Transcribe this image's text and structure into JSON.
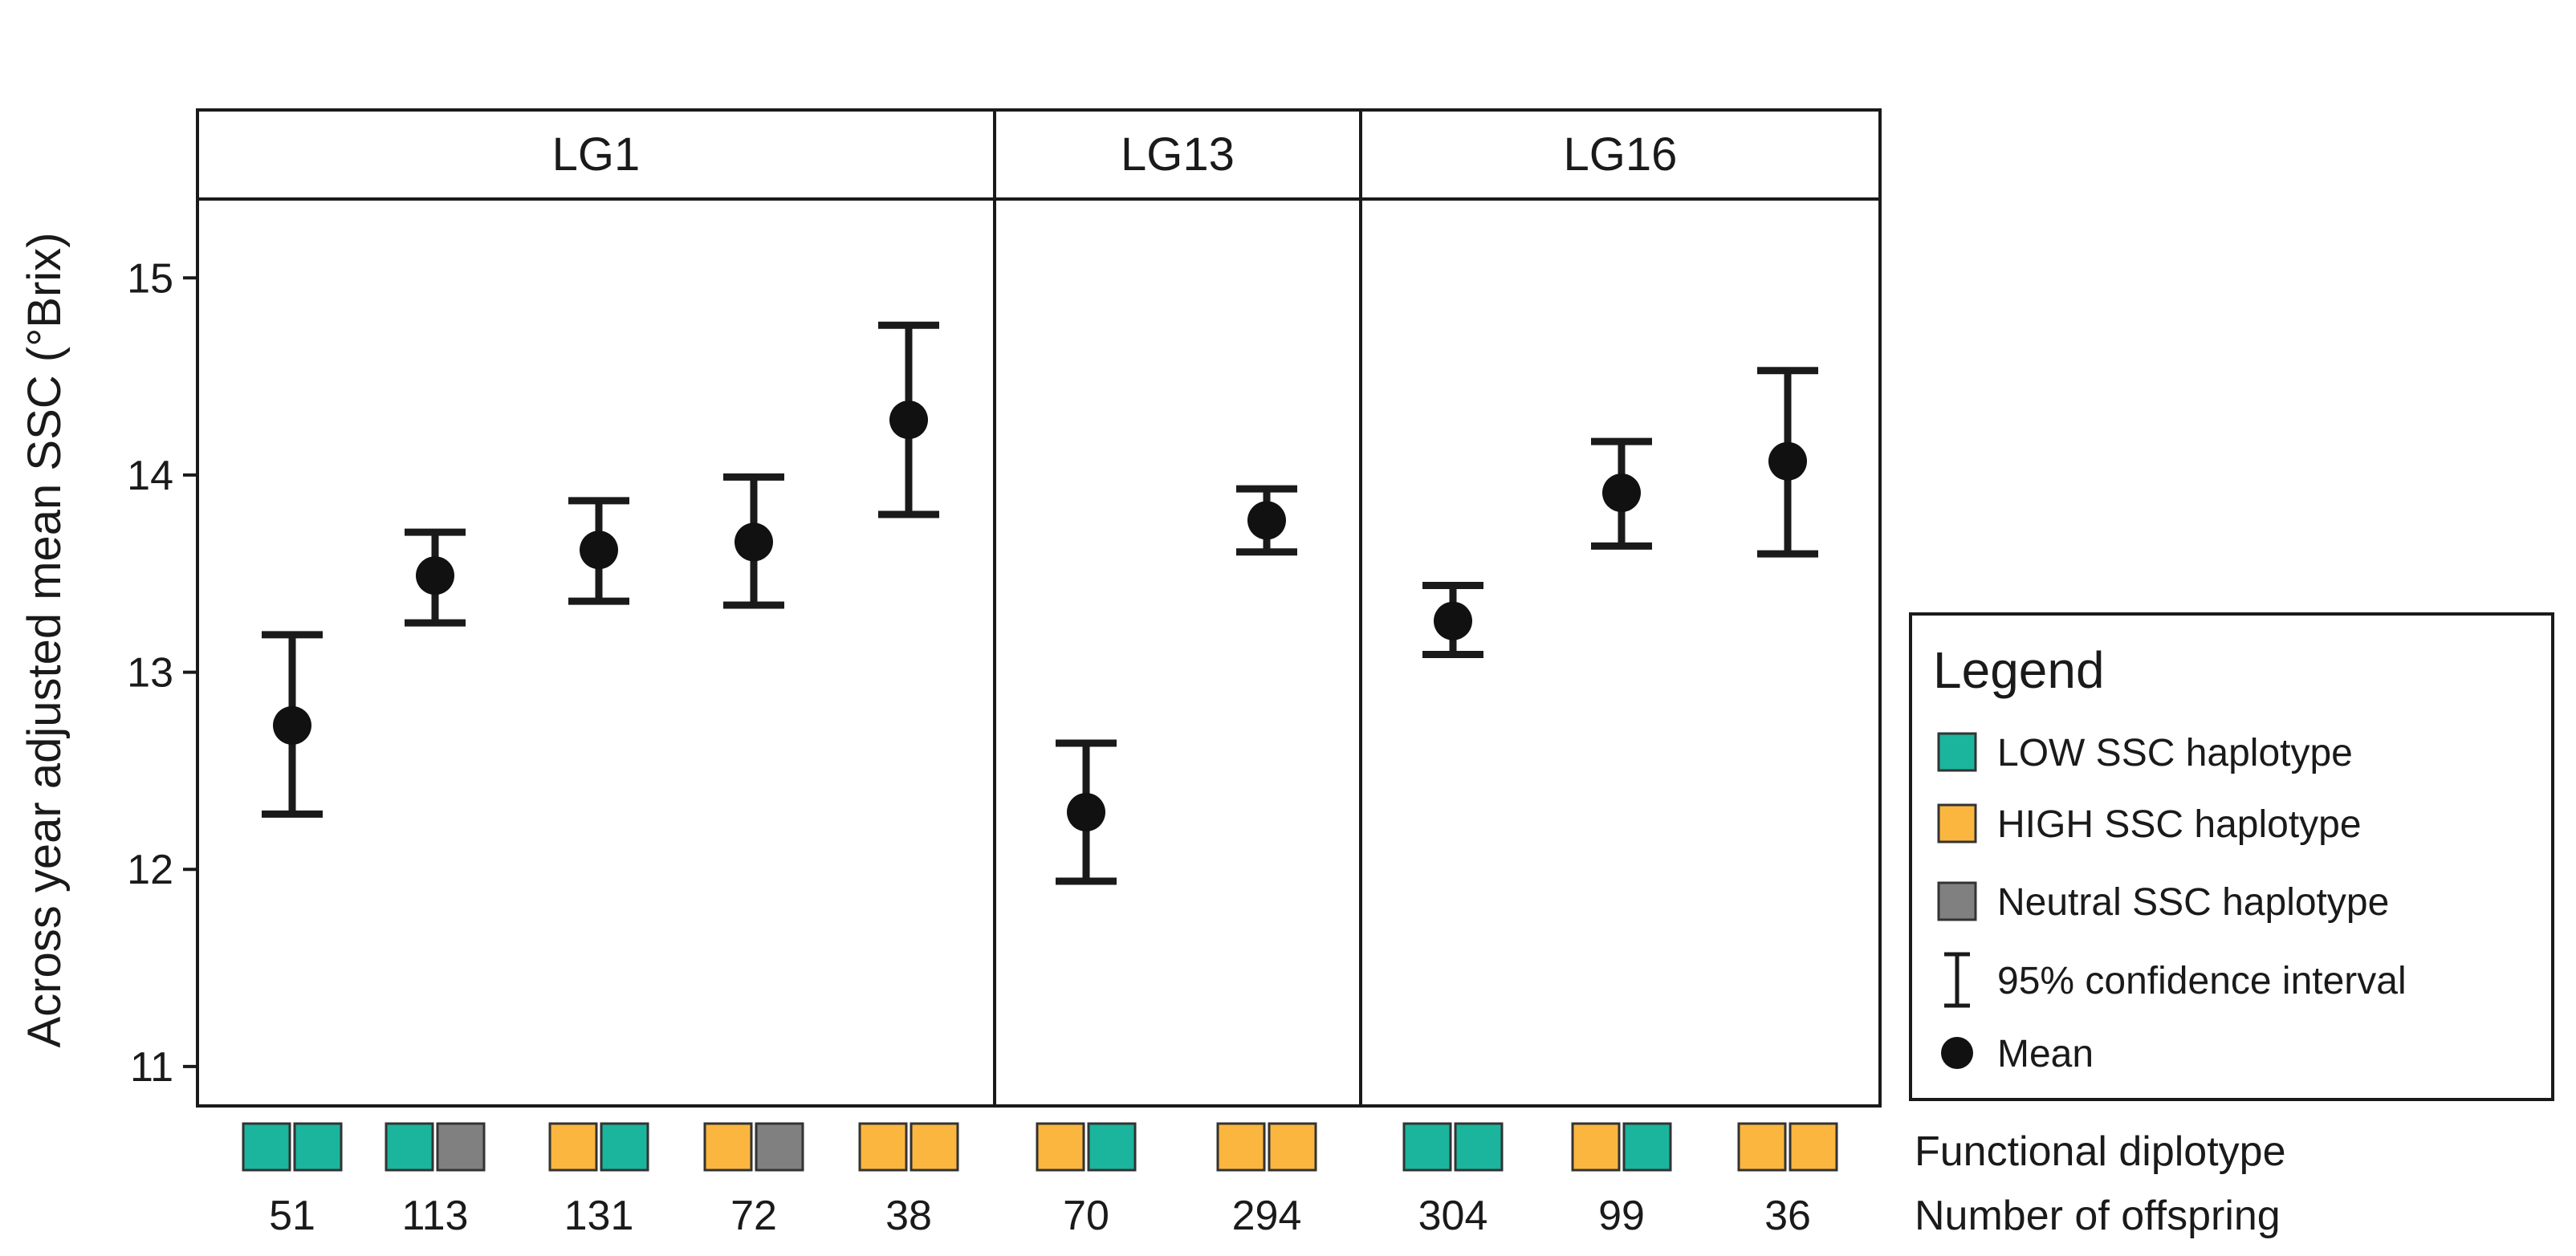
{
  "chart_data": {
    "type": "scatter",
    "ylabel": "Across year adjusted mean SSC (°Brix)",
    "ylim": [
      10.8,
      15.4
    ],
    "yticks": [
      11,
      12,
      13,
      14,
      15
    ],
    "row_labels": [
      "Functional diplotype",
      "Number of offspring"
    ],
    "colors": {
      "low": "#1ab59c",
      "high": "#fbb63f",
      "neutral": "#808080"
    },
    "panels": [
      {
        "label": "LG1",
        "groups": [
          {
            "diplotype": [
              "low",
              "low"
            ],
            "n": "51",
            "mean": 12.73,
            "lower": 12.28,
            "upper": 13.19
          },
          {
            "diplotype": [
              "low",
              "neutral"
            ],
            "n": "113",
            "mean": 13.49,
            "lower": 13.25,
            "upper": 13.71
          },
          {
            "diplotype": [
              "high",
              "low"
            ],
            "n": "131",
            "mean": 13.62,
            "lower": 13.36,
            "upper": 13.87
          },
          {
            "diplotype": [
              "high",
              "neutral"
            ],
            "n": "72",
            "mean": 13.66,
            "lower": 13.34,
            "upper": 13.99
          },
          {
            "diplotype": [
              "high",
              "high"
            ],
            "n": "38",
            "mean": 14.28,
            "lower": 13.8,
            "upper": 14.76
          }
        ]
      },
      {
        "label": "LG13",
        "groups": [
          {
            "diplotype": [
              "high",
              "low"
            ],
            "n": "70",
            "mean": 12.29,
            "lower": 11.94,
            "upper": 12.64
          },
          {
            "diplotype": [
              "high",
              "high"
            ],
            "n": "294",
            "mean": 13.77,
            "lower": 13.61,
            "upper": 13.93
          }
        ]
      },
      {
        "label": "LG16",
        "groups": [
          {
            "diplotype": [
              "low",
              "low"
            ],
            "n": "304",
            "mean": 13.26,
            "lower": 13.09,
            "upper": 13.44
          },
          {
            "diplotype": [
              "high",
              "low"
            ],
            "n": "99",
            "mean": 13.91,
            "lower": 13.64,
            "upper": 14.17
          },
          {
            "diplotype": [
              "high",
              "high"
            ],
            "n": "36",
            "mean": 14.07,
            "lower": 13.6,
            "upper": 14.53
          }
        ]
      }
    ],
    "legend": {
      "title": "Legend",
      "position": "right",
      "items": [
        {
          "type": "swatch",
          "color_key": "low",
          "label": "LOW SSC haplotype"
        },
        {
          "type": "swatch",
          "color_key": "high",
          "label": "HIGH SSC haplotype"
        },
        {
          "type": "swatch",
          "color_key": "neutral",
          "label": "Neutral SSC haplotype"
        },
        {
          "type": "errorbar",
          "label": "95% confidence interval"
        },
        {
          "type": "dot",
          "label": "Mean"
        }
      ]
    }
  }
}
